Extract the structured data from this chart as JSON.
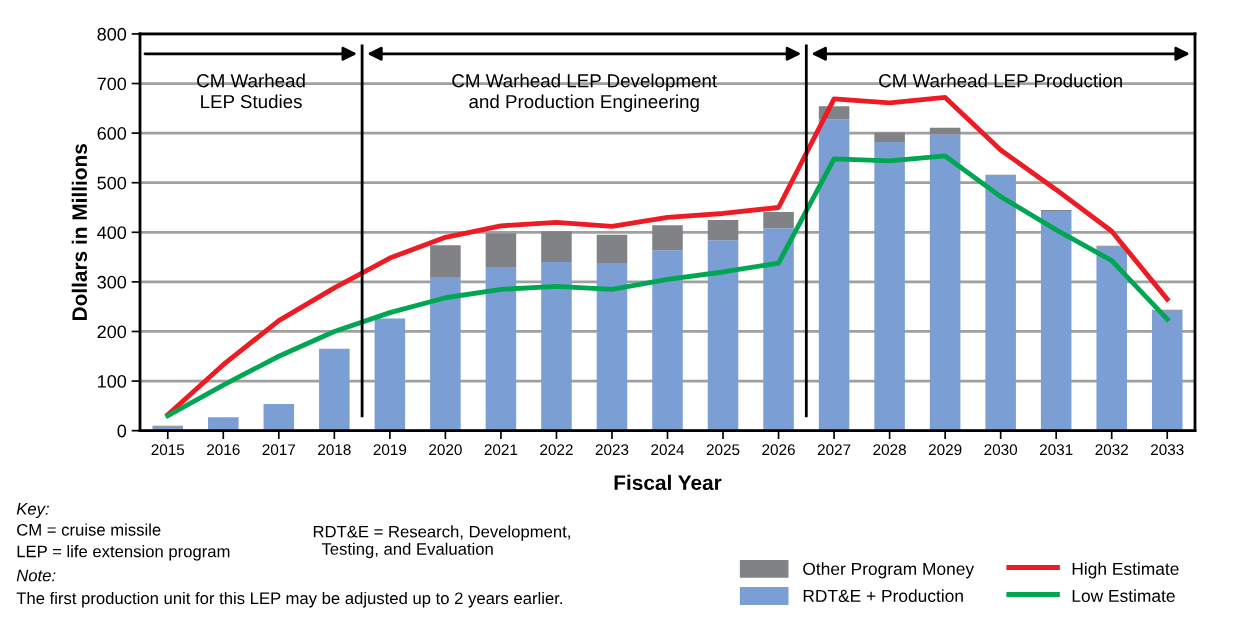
{
  "chart_data": {
    "type": "bar",
    "xlabel": "Fiscal Year",
    "ylabel": "Dollars in Millions",
    "categories": [
      "2015",
      "2016",
      "2017",
      "2018",
      "2019",
      "2020",
      "2021",
      "2022",
      "2023",
      "2024",
      "2025",
      "2026",
      "2027",
      "2028",
      "2029",
      "2030",
      "2031",
      "2032",
      "2033"
    ],
    "stacked": true,
    "series": [
      {
        "name": "RDT&E + Production",
        "color": "#7b9fd4",
        "values": [
          8,
          27,
          54,
          165,
          226,
          310,
          330,
          340,
          338,
          364,
          384,
          408,
          628,
          582,
          597,
          514,
          443,
          371,
          242
        ]
      },
      {
        "name": "Other Program Money",
        "color": "#808285",
        "values": [
          2,
          0,
          0,
          0,
          0,
          64,
          68,
          62,
          57,
          50,
          41,
          33,
          26,
          19,
          14,
          2,
          2,
          2,
          2
        ]
      },
      {
        "name": "High Estimate",
        "type": "line",
        "color": "#ed1c24",
        "values": [
          32,
          133,
          222,
          288,
          348,
          390,
          413,
          420,
          412,
          430,
          438,
          450,
          669,
          661,
          672,
          566,
          486,
          402,
          265
        ]
      },
      {
        "name": "Low Estimate",
        "type": "line",
        "color": "#00a651",
        "values": [
          30,
          92,
          150,
          200,
          238,
          268,
          285,
          291,
          285,
          305,
          320,
          338,
          548,
          544,
          554,
          472,
          405,
          343,
          225
        ]
      }
    ],
    "ylim": [
      0,
      800
    ],
    "yticks": [
      0,
      100,
      200,
      300,
      400,
      500,
      600,
      700,
      800
    ],
    "grid": "y",
    "legend": "bottom right",
    "marker": "none",
    "line_style": "solid",
    "annotations": [
      "CM Warhead\nLEP Studies",
      "CM Warhead LEP Development\nand Production Engineering",
      "CM Warhead LEP Production",
      "Key:",
      "CM = cruise missile",
      "LEP = life extension program",
      "RDT&E = Research, Development,\n  Testing, and Evaluation",
      "Note:",
      "The first production unit for this LEP may be adjusted up to 2 years earlier."
    ]
  }
}
